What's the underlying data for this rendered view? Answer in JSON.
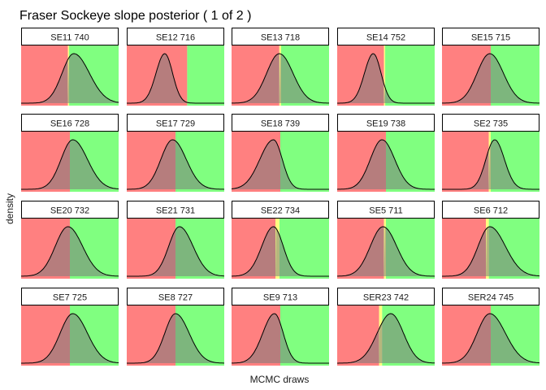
{
  "chart_data": {
    "type": "area",
    "title": "Fraser Sockeye slope posterior ( 1  of  2 )",
    "xlabel": "MCMC draws",
    "ylabel": "density",
    "layout": "facet grid 4 rows x 5 columns",
    "colors": {
      "below_threshold": "#ff8080",
      "above_threshold": "#80ff80",
      "threshold_band": "#ffff80",
      "density_fill": "#7a7a7a",
      "density_line": "#000000",
      "strip_fill": "#ffffff",
      "strip_border": "#000000"
    },
    "panels": [
      {
        "label": "SE11 740",
        "threshold": 0.48,
        "band": 0.012,
        "peak": 0.54,
        "sl": 0.12,
        "sr": 0.16
      },
      {
        "label": "SE12 716",
        "threshold": 0.62,
        "band": 0.0,
        "peak": 0.39,
        "sl": 0.09,
        "sr": 0.08
      },
      {
        "label": "SE13 718",
        "threshold": 0.49,
        "band": 0.018,
        "peak": 0.49,
        "sl": 0.13,
        "sr": 0.14
      },
      {
        "label": "SE14 752",
        "threshold": 0.48,
        "band": 0.012,
        "peak": 0.37,
        "sl": 0.09,
        "sr": 0.08
      },
      {
        "label": "SE15 715",
        "threshold": 0.5,
        "band": 0.0,
        "peak": 0.49,
        "sl": 0.13,
        "sr": 0.14
      },
      {
        "label": "SE16 728",
        "threshold": 0.5,
        "band": 0.0,
        "peak": 0.53,
        "sl": 0.12,
        "sr": 0.15
      },
      {
        "label": "SE17 729",
        "threshold": 0.5,
        "band": 0.0,
        "peak": 0.47,
        "sl": 0.12,
        "sr": 0.14
      },
      {
        "label": "SE18 739",
        "threshold": 0.5,
        "band": 0.0,
        "peak": 0.43,
        "sl": 0.14,
        "sr": 0.09
      },
      {
        "label": "SE19 738",
        "threshold": 0.5,
        "band": 0.0,
        "peak": 0.46,
        "sl": 0.12,
        "sr": 0.13
      },
      {
        "label": "SE2 735",
        "threshold": 0.48,
        "band": 0.02,
        "peak": 0.54,
        "sl": 0.09,
        "sr": 0.1
      },
      {
        "label": "SE20 732",
        "threshold": 0.5,
        "band": 0.0,
        "peak": 0.48,
        "sl": 0.13,
        "sr": 0.15
      },
      {
        "label": "SE21 731",
        "threshold": 0.5,
        "band": 0.0,
        "peak": 0.54,
        "sl": 0.11,
        "sr": 0.14
      },
      {
        "label": "SE22 734",
        "threshold": 0.45,
        "band": 0.04,
        "peak": 0.43,
        "sl": 0.12,
        "sr": 0.1
      },
      {
        "label": "SE5 711",
        "threshold": 0.48,
        "band": 0.02,
        "peak": 0.47,
        "sl": 0.13,
        "sr": 0.14
      },
      {
        "label": "SE6 712",
        "threshold": 0.45,
        "band": 0.03,
        "peak": 0.49,
        "sl": 0.12,
        "sr": 0.16
      },
      {
        "label": "SE7 725",
        "threshold": 0.5,
        "band": 0.0,
        "peak": 0.53,
        "sl": 0.13,
        "sr": 0.15
      },
      {
        "label": "SE8 727",
        "threshold": 0.5,
        "band": 0.0,
        "peak": 0.5,
        "sl": 0.11,
        "sr": 0.14
      },
      {
        "label": "SE9 713",
        "threshold": 0.5,
        "band": 0.0,
        "peak": 0.44,
        "sl": 0.12,
        "sr": 0.09
      },
      {
        "label": "SER23 742",
        "threshold": 0.43,
        "band": 0.03,
        "peak": 0.55,
        "sl": 0.14,
        "sr": 0.13
      },
      {
        "label": "SER24 745",
        "threshold": 0.5,
        "band": 0.0,
        "peak": 0.49,
        "sl": 0.13,
        "sr": 0.16
      }
    ]
  }
}
